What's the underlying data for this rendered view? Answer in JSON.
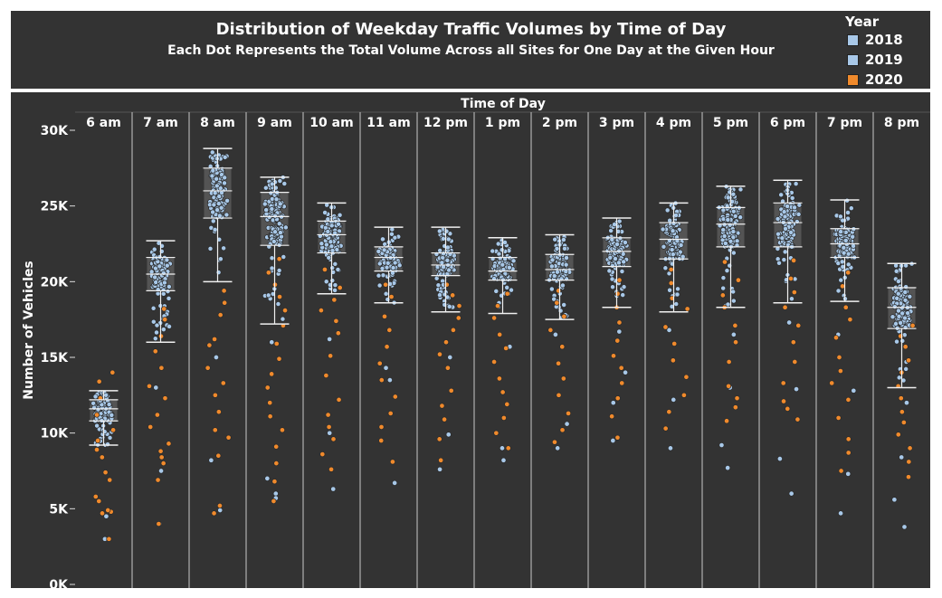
{
  "header": {
    "title": "Distribution of Weekday Traffic Volumes by Time of Day",
    "subtitle": "Each Dot Represents the Total Volume Across all Sites for One Day at the Given Hour"
  },
  "legend": {
    "title": "Year",
    "items": [
      {
        "label": "2018",
        "color": "#a8c8e8"
      },
      {
        "label": "2019",
        "color": "#a8c8e8"
      },
      {
        "label": "2020",
        "color": "#f08a2c"
      }
    ]
  },
  "chart_data": {
    "type": "scatter",
    "subtype": "jittered strip plot with box plot",
    "xlabel": "Time of Day",
    "ylabel": "Number of Vehicles",
    "ylim": [
      0,
      30000
    ],
    "yticks": [
      0,
      5000,
      10000,
      15000,
      20000,
      25000,
      30000
    ],
    "ytick_labels": [
      "0K",
      "5K",
      "10K",
      "15K",
      "20K",
      "25K",
      "30K"
    ],
    "grid": false,
    "legend_position": "top-right",
    "categories": [
      "6 am",
      "7 am",
      "8 am",
      "9 am",
      "10 am",
      "11 am",
      "12 pm",
      "1 pm",
      "2 pm",
      "3 pm",
      "4 pm",
      "5 pm",
      "6 pm",
      "7 pm",
      "8 pm"
    ],
    "box_stats": [
      {
        "hour": "6 am",
        "whisker_low": 9200,
        "q1": 10800,
        "median": 11600,
        "q3": 12200,
        "whisker_high": 12800
      },
      {
        "hour": "7 am",
        "whisker_low": 16000,
        "q1": 19400,
        "median": 20500,
        "q3": 21600,
        "whisker_high": 22700
      },
      {
        "hour": "8 am",
        "whisker_low": 20000,
        "q1": 24200,
        "median": 26000,
        "q3": 27500,
        "whisker_high": 28800
      },
      {
        "hour": "9 am",
        "whisker_low": 17200,
        "q1": 22400,
        "median": 24300,
        "q3": 25900,
        "whisker_high": 26900
      },
      {
        "hour": "10 am",
        "whisker_low": 19200,
        "q1": 21900,
        "median": 23100,
        "q3": 24000,
        "whisker_high": 25200
      },
      {
        "hour": "11 am",
        "whisker_low": 18600,
        "q1": 20700,
        "median": 21600,
        "q3": 22300,
        "whisker_high": 23600
      },
      {
        "hour": "12 pm",
        "whisker_low": 18000,
        "q1": 20400,
        "median": 21100,
        "q3": 21900,
        "whisker_high": 23600
      },
      {
        "hour": "1 pm",
        "whisker_low": 17900,
        "q1": 20100,
        "median": 20700,
        "q3": 21600,
        "whisker_high": 22900
      },
      {
        "hour": "2 pm",
        "whisker_low": 17500,
        "q1": 20100,
        "median": 20800,
        "q3": 21800,
        "whisker_high": 23100
      },
      {
        "hour": "3 pm",
        "whisker_low": 18300,
        "q1": 21000,
        "median": 22000,
        "q3": 22900,
        "whisker_high": 24200
      },
      {
        "hour": "4 pm",
        "whisker_low": 18000,
        "q1": 21500,
        "median": 22800,
        "q3": 23900,
        "whisker_high": 25200
      },
      {
        "hour": "5 pm",
        "whisker_low": 18300,
        "q1": 22300,
        "median": 23800,
        "q3": 24900,
        "whisker_high": 26300
      },
      {
        "hour": "6 pm",
        "whisker_low": 18600,
        "q1": 22300,
        "median": 23900,
        "q3": 25200,
        "whisker_high": 26700
      },
      {
        "hour": "7 pm",
        "whisker_low": 18700,
        "q1": 21600,
        "median": 22500,
        "q3": 23500,
        "whisker_high": 25400
      },
      {
        "hour": "8 pm",
        "whisker_low": 13000,
        "q1": 16900,
        "median": 18300,
        "q3": 19600,
        "whisker_high": 21200
      }
    ],
    "series": [
      {
        "name": "2018",
        "color": "#a8c8e8",
        "outlier_values": [
          [
            4500
          ],
          [
            7500,
            4000
          ],
          [
            8200,
            4900
          ],
          [
            6000,
            7000,
            5700
          ],
          [
            6300,
            10000
          ],
          [
            6700,
            13500
          ],
          [
            7600,
            9900
          ],
          [
            8200,
            9000
          ],
          [
            9000,
            10600
          ],
          [
            9500,
            12000,
            14000
          ],
          [
            9000,
            12200
          ],
          [
            7700,
            9200,
            13000
          ],
          [
            6000,
            8300,
            12900
          ],
          [
            4700,
            7300,
            12800
          ],
          [
            3800,
            5600,
            8400
          ]
        ]
      },
      {
        "name": "2019",
        "color": "#a8c8e8",
        "outlier_values": [
          [
            3000
          ],
          [
            13000
          ],
          [
            15000
          ],
          [
            16000
          ],
          [
            16200
          ],
          [
            14300
          ],
          [
            15000
          ],
          [
            15700
          ],
          [
            16500
          ],
          [
            16700
          ],
          [
            16800
          ],
          [
            16500
          ],
          [
            17300
          ],
          [
            16500
          ],
          [
            12000
          ]
        ]
      },
      {
        "name": "2020",
        "color": "#f08a2c",
        "outlier_values": [
          [
            14000,
            13400,
            12300,
            11200,
            10200,
            9500,
            8900,
            8400,
            7400,
            6900,
            5800,
            5500,
            4800,
            4700,
            4900,
            3000
          ],
          [
            18200,
            17500,
            16400,
            15400,
            14300,
            13100,
            12300,
            11200,
            10400,
            9300,
            8800,
            8400,
            8000,
            6900,
            4000
          ],
          [
            19400,
            18600,
            17800,
            16200,
            15800,
            14300,
            13300,
            12500,
            11400,
            10200,
            9700,
            8500,
            5200,
            4700
          ],
          [
            21500,
            20600,
            19800,
            19000,
            18100,
            17100,
            15900,
            14900,
            13900,
            13000,
            12000,
            11100,
            10200,
            9100,
            8000,
            6800,
            5500
          ],
          [
            20800,
            19600,
            18800,
            18100,
            17400,
            16600,
            15100,
            13800,
            12200,
            11200,
            10400,
            9600,
            8600,
            7600
          ],
          [
            19800,
            19000,
            17700,
            16800,
            15700,
            14600,
            13500,
            12400,
            11300,
            10400,
            9500,
            8100
          ],
          [
            19800,
            19100,
            18400,
            17600,
            16800,
            16000,
            15200,
            14300,
            12800,
            11800,
            10900,
            9600,
            8200
          ],
          [
            19200,
            18400,
            17600,
            16500,
            15600,
            14700,
            13600,
            12700,
            11900,
            11000,
            10000,
            9000
          ],
          [
            19400,
            18600,
            17700,
            16800,
            15700,
            14600,
            13600,
            12500,
            11300,
            10200,
            9400
          ],
          [
            20100,
            19200,
            18300,
            17300,
            16100,
            15100,
            14300,
            13300,
            12300,
            11100,
            9700
          ],
          [
            20800,
            19900,
            18900,
            18200,
            17000,
            15900,
            14800,
            13700,
            12500,
            11400,
            10300
          ],
          [
            21300,
            20100,
            19100,
            18300,
            17100,
            16000,
            14700,
            13100,
            12300,
            11700,
            10800
          ],
          [
            21400,
            20200,
            19300,
            18300,
            17100,
            16000,
            14700,
            13300,
            12100,
            11600,
            10900
          ],
          [
            20600,
            19700,
            18300,
            17500,
            16300,
            15000,
            14100,
            13300,
            12200,
            11000,
            9600,
            8700,
            7500
          ],
          [
            17100,
            16400,
            15700,
            14800,
            14000,
            13100,
            12300,
            11400,
            10700,
            9900,
            9000,
            8100,
            7100
          ]
        ]
      }
    ]
  }
}
